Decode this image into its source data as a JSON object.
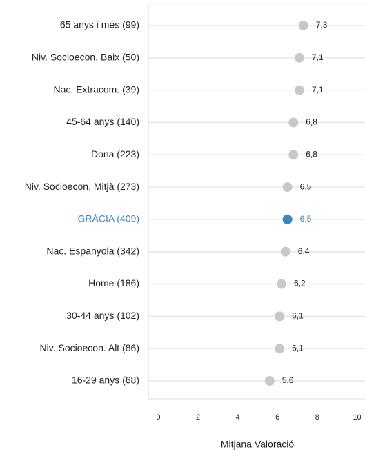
{
  "chart_data": {
    "type": "dot",
    "categories": [
      "65 anys i més (99)",
      "Niv. Socioecon. Baix (50)",
      "Nac. Extracom. (39)",
      "45-64 anys (140)",
      "Dona (223)",
      "Niv. Socioecon. Mitjà (273)",
      "GRÀCIA (409)",
      "Nac. Espanyola (342)",
      "Home (186)",
      "30-44 anys (102)",
      "Niv. Socioecon. Alt (86)",
      "16-29 anys (68)"
    ],
    "values": [
      7.3,
      7.1,
      7.1,
      6.8,
      6.8,
      6.5,
      6.5,
      6.4,
      6.2,
      6.1,
      6.1,
      5.6
    ],
    "value_labels": [
      "7,3",
      "7,1",
      "7,1",
      "6,8",
      "6,8",
      "6,5",
      "6,5",
      "6,4",
      "6,2",
      "6,1",
      "6,1",
      "5,6"
    ],
    "colors": [
      "#c8c8c8",
      "#c8c8c8",
      "#c8c8c8",
      "#c8c8c8",
      "#c8c8c8",
      "#c8c8c8",
      "#3a87c0",
      "#c8c8c8",
      "#c8c8c8",
      "#c8c8c8",
      "#c8c8c8",
      "#c8c8c8"
    ],
    "label_colors": [
      "#222222",
      "#222222",
      "#222222",
      "#222222",
      "#222222",
      "#222222",
      "#3a87c0",
      "#222222",
      "#222222",
      "#222222",
      "#222222",
      "#222222"
    ],
    "xlabel": "Mitjana Valoració",
    "xlim": [
      -0.5,
      10.4
    ],
    "xticks": [
      0,
      2,
      4,
      6,
      8,
      10
    ],
    "grid": true
  }
}
